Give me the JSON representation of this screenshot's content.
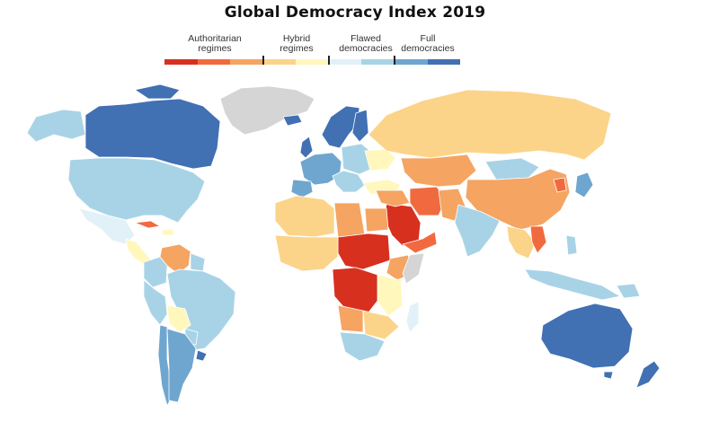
{
  "title": "Global Democracy Index 2019",
  "legend": {
    "categories": [
      {
        "line1": "Authoritarian",
        "line2": "regimes"
      },
      {
        "line1": "Hybrid",
        "line2": "regimes"
      },
      {
        "line1": "Flawed",
        "line2": "democracies"
      },
      {
        "line1": "Full",
        "line2": "democracies"
      }
    ],
    "colors": [
      "#d7301f",
      "#f16a3f",
      "#f5a462",
      "#fbd48a",
      "#fff7bc",
      "#e2f1f8",
      "#a8d3e6",
      "#6fa6cf",
      "#4170b3"
    ]
  },
  "colors": {
    "no_data": "#d5d5d5",
    "ocean": "#ffffff",
    "border": "#ffffff"
  }
}
